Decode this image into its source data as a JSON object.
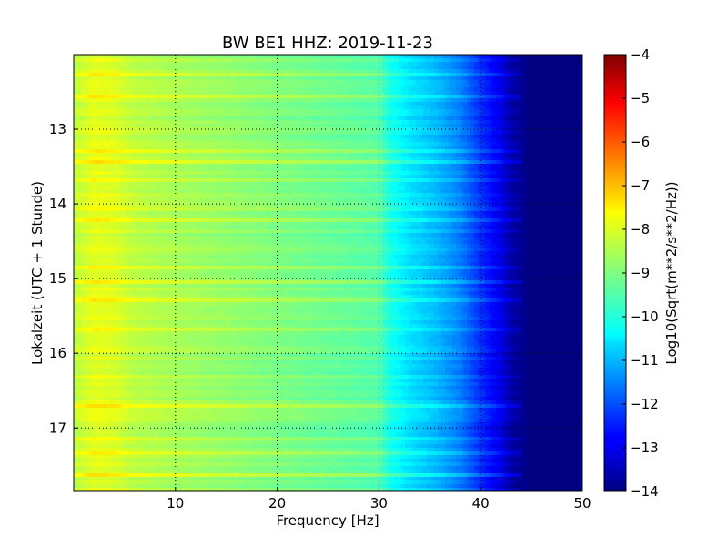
{
  "chart_data": {
    "type": "heatmap",
    "title": "BW BE1 HHZ: 2019-11-23",
    "xlabel": "Frequency [Hz]",
    "ylabel": "Lokalzeit (UTC + 1 Stunde)",
    "xlim": [
      0,
      50
    ],
    "ylim": [
      12.0,
      17.85
    ],
    "y_inverted": true,
    "x_ticks": [
      10,
      20,
      30,
      40,
      50
    ],
    "y_ticks": [
      13,
      14,
      15,
      16,
      17
    ],
    "grid": true,
    "colormap": "jet",
    "colorbar": {
      "label": "Log10(Sqrt(m**2/s**2/Hz))",
      "range": [
        -14,
        -4
      ],
      "ticks": [
        -4,
        -5,
        -6,
        -7,
        -8,
        -9,
        -10,
        -11,
        -12,
        -13,
        -14
      ]
    },
    "spectrum_profile": {
      "frequency_hz": [
        0,
        2,
        4,
        6,
        10,
        15,
        20,
        25,
        30,
        31,
        33,
        36,
        38,
        40,
        42,
        43,
        45,
        50
      ],
      "log10_amplitude": [
        -8.4,
        -8.0,
        -8.1,
        -8.4,
        -8.6,
        -8.8,
        -9.0,
        -9.2,
        -9.4,
        -10.0,
        -10.5,
        -11.0,
        -11.5,
        -12.3,
        -13.0,
        -13.6,
        -14.0,
        -14.0
      ]
    },
    "bright_bands_hours": [
      12.27,
      12.55,
      13.3,
      13.42,
      13.7,
      13.95,
      14.08,
      14.2,
      14.58,
      14.85,
      15.05,
      15.3,
      15.68,
      16.72,
      17.15,
      17.35,
      17.65
    ]
  }
}
